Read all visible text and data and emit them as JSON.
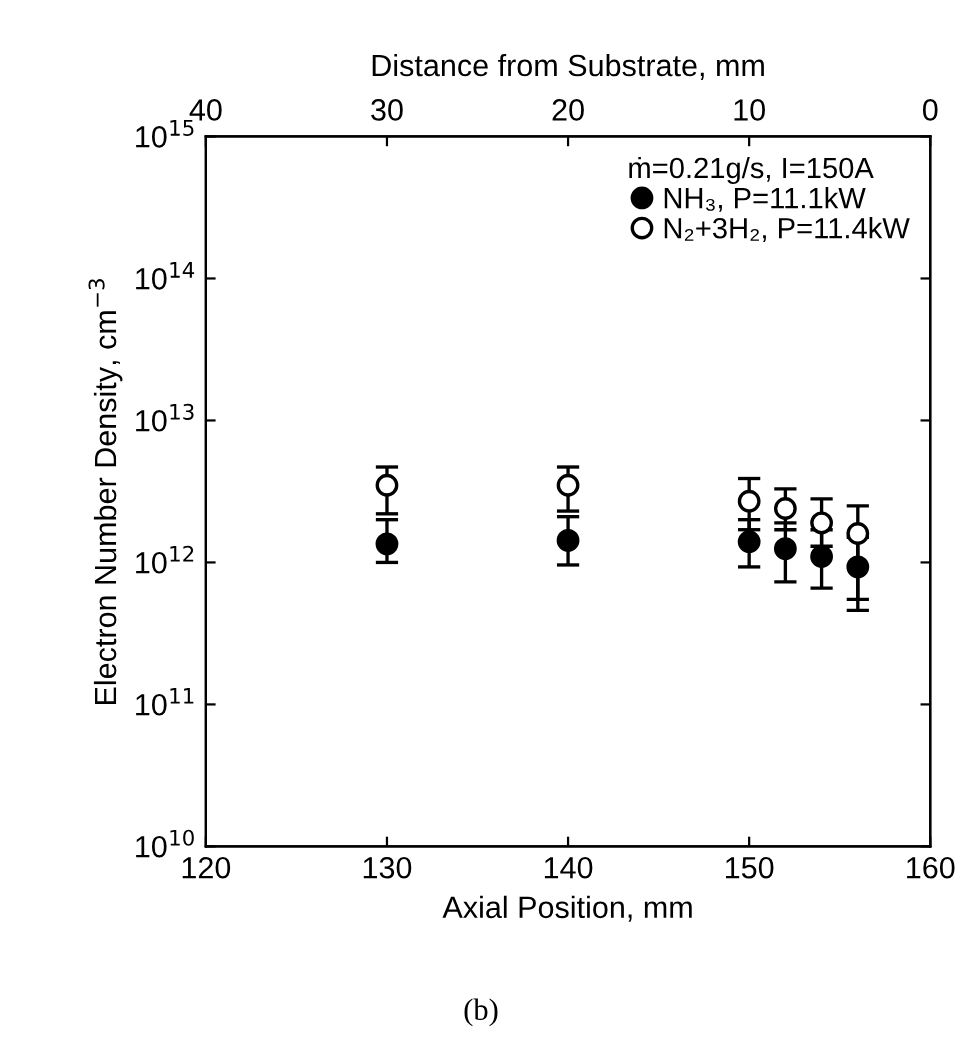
{
  "chart_data": {
    "type": "scatter",
    "xlabel": "Axial Position, mm",
    "ylabel": "Electron Number Density, cm$^{−3}$",
    "x2label": "Distance from Substrate, mm",
    "legend_title": "ṁ=0.21g/s, I=150A",
    "x": [
      130,
      140,
      150,
      152,
      154,
      156
    ],
    "series": [
      {
        "name": "NH₃, P=11.1kW",
        "color": "#000000",
        "values": [
          1350000000000.0,
          1430000000000.0,
          1400000000000.0,
          1250000000000.0,
          1100000000000.0,
          930000000000.0
        ],
        "errors": [
          [
            1000000000000.0,
            2000000000000.0
          ],
          [
            960000000000.0,
            2100000000000.0
          ],
          [
            930000000000.0,
            2000000000000.0
          ],
          [
            730000000000.0,
            1900000000000.0
          ],
          [
            660000000000.0,
            1700000000000.0
          ],
          [
            460000000000.0,
            1500000000000.0
          ]
        ]
      },
      {
        "name": "N₂+3H₂, P=11.4kW",
        "color": "#000000",
        "values": [
          3500000000000.0,
          3500000000000.0,
          2700000000000.0,
          2400000000000.0,
          1900000000000.0,
          1600000000000.0
        ],
        "errors": [
          [
            2200000000000.0,
            4700000000000.0
          ],
          [
            2300000000000.0,
            4700000000000.0
          ],
          [
            1700000000000.0,
            3900000000000.0
          ],
          [
            1700000000000.0,
            3300000000000.0
          ],
          [
            1300000000000.0,
            2800000000000.0
          ],
          [
            550000000000.0,
            2500000000000.0
          ]
        ]
      }
    ],
    "log": "y",
    "xlim": [
      120,
      160
    ],
    "xticks": [
      120,
      130,
      140,
      150,
      160
    ],
    "x2lim": [
      40,
      0
    ],
    "x2ticks": [
      40,
      30,
      20,
      10,
      0
    ],
    "ylim": [
      10000000000.0,
      1000000000000000.0
    ],
    "yticks": [
      {
        "value": 10000000000.0,
        "label": "10$^{10}$"
      },
      {
        "value": 100000000000.0,
        "label": "10$^{11}$"
      },
      {
        "value": 1000000000000.0,
        "label": "10$^{12}$"
      },
      {
        "value": 10000000000000.0,
        "label": "10$^{13}$"
      },
      {
        "value": 100000000000000.0,
        "label": "10$^{14}$"
      },
      {
        "value": 1000000000000000.0,
        "label": "10$^{15}$"
      }
    ],
    "marker": "circle",
    "grid": false,
    "legend": "top right",
    "annotations": [
      "(b)"
    ]
  }
}
